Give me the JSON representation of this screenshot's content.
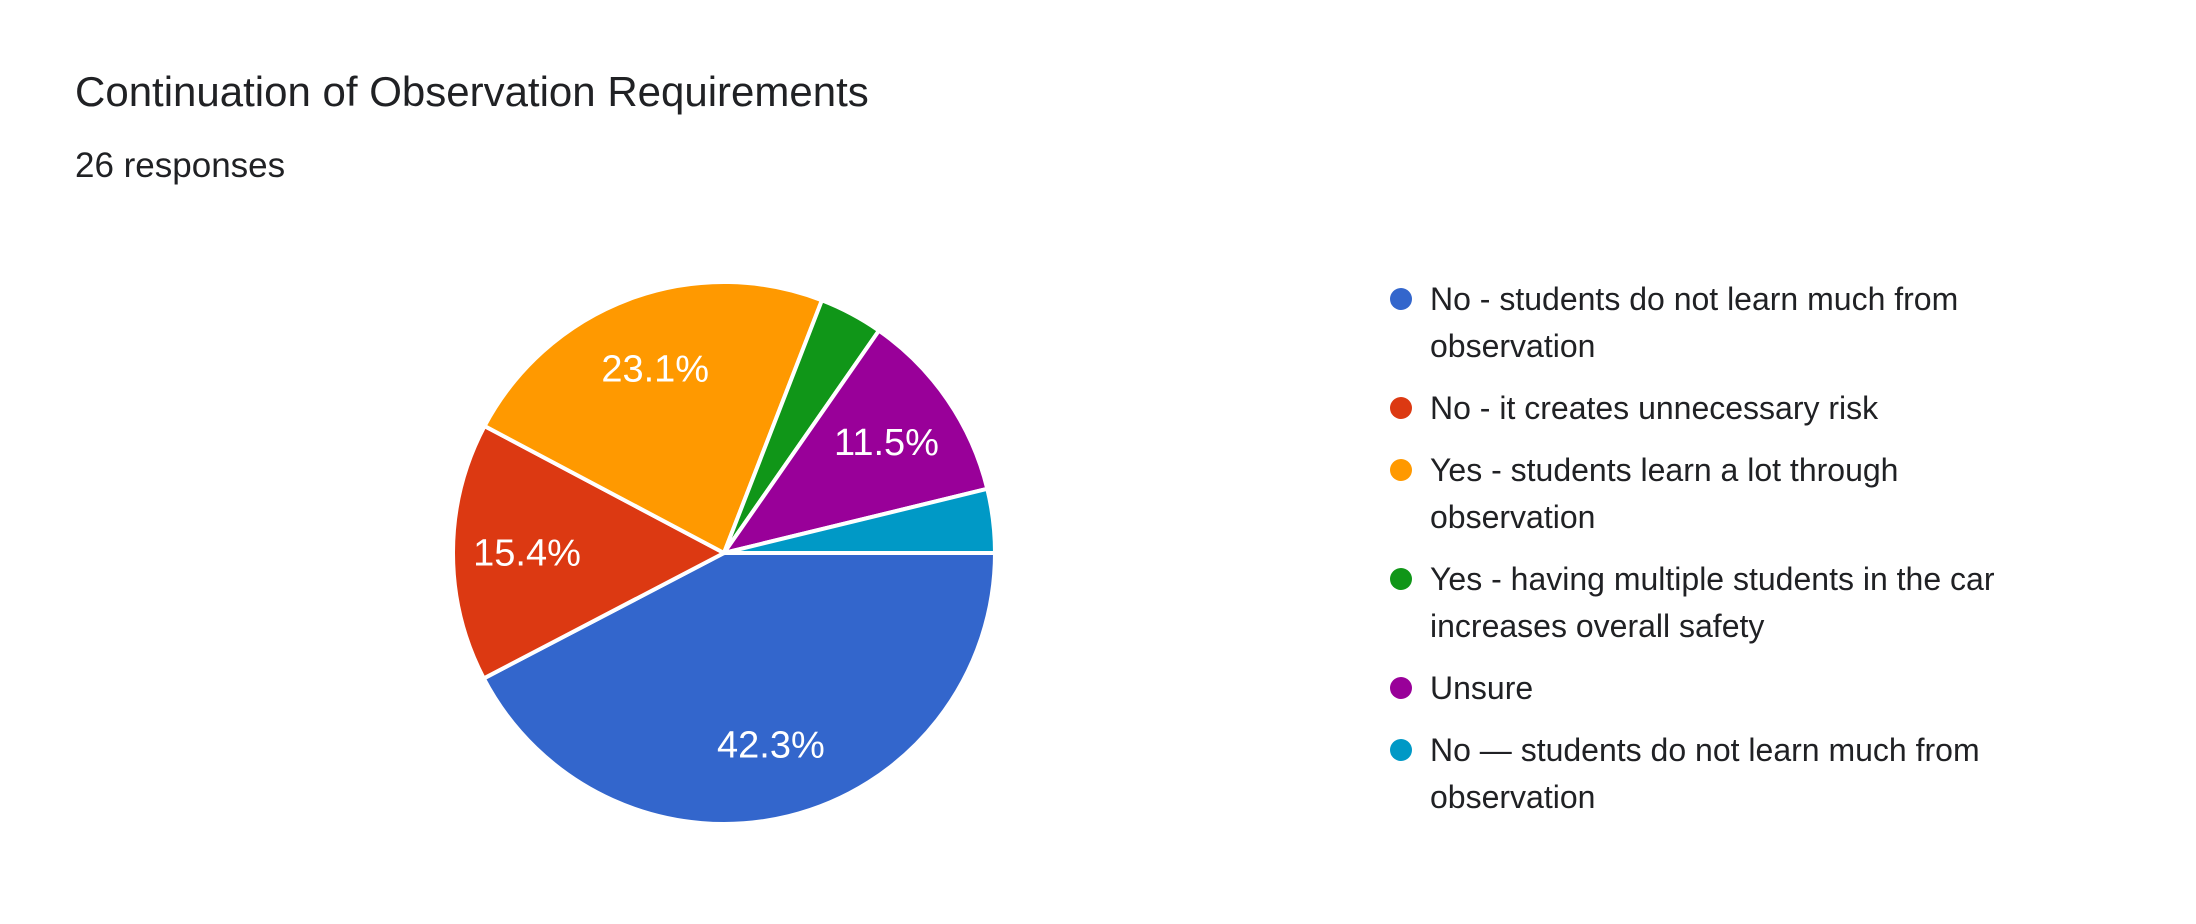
{
  "header": {
    "title": "Continuation of Observation Requirements",
    "responses_label": "26 responses"
  },
  "chart_data": {
    "type": "pie",
    "title": "Continuation of Observation Requirements",
    "subtitle": "26 responses",
    "total_responses": 26,
    "legend_position": "right",
    "start_angle": "east",
    "direction": "clockwise",
    "slices": [
      {
        "label": "No - students do not learn much from observation",
        "value": 11,
        "percent": 42.3,
        "percent_label": "42.3%",
        "color": "#3366CC"
      },
      {
        "label": "No - it creates unnecessary risk",
        "value": 4,
        "percent": 15.4,
        "percent_label": "15.4%",
        "color": "#DC3912"
      },
      {
        "label": "Yes - students learn a lot through observation",
        "value": 6,
        "percent": 23.1,
        "percent_label": "23.1%",
        "color": "#FF9900"
      },
      {
        "label": "Yes - having multiple students in the car increases overall safety",
        "value": 1,
        "percent": 3.8,
        "percent_label": "",
        "color": "#109618"
      },
      {
        "label": "Unsure",
        "value": 3,
        "percent": 11.5,
        "percent_label": "11.5%",
        "color": "#990099"
      },
      {
        "label": "No — students do not learn much from observation",
        "value": 1,
        "percent": 3.8,
        "percent_label": "",
        "color": "#0099C6"
      }
    ]
  },
  "colors": {
    "background": "#ffffff",
    "text_primary": "#202124",
    "slice_label_text": "#ffffff"
  }
}
